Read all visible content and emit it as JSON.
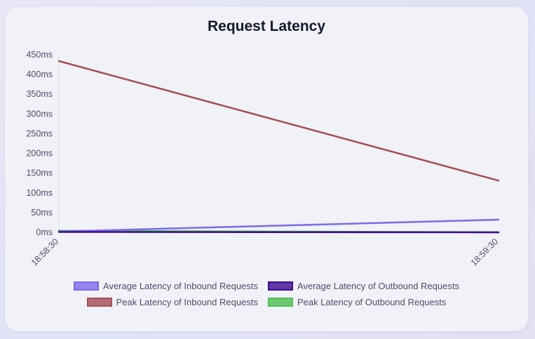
{
  "chart_data": {
    "type": "line",
    "title": "Request Latency",
    "x": [
      "18:58:30",
      "18:59:30"
    ],
    "y_ticks": [
      "0ms",
      "50ms",
      "100ms",
      "150ms",
      "200ms",
      "250ms",
      "300ms",
      "350ms",
      "400ms",
      "450ms"
    ],
    "ylim": [
      0,
      450
    ],
    "y_unit": "ms",
    "grid": false,
    "legend_placement": "bottom",
    "series": [
      {
        "name": "Average Latency of Inbound Requests",
        "values": [
          2,
          32
        ],
        "color": "#7b6ae8"
      },
      {
        "name": "Average Latency of Outbound Requests",
        "values": [
          1,
          0
        ],
        "color": "#3d0a91"
      },
      {
        "name": "Peak Latency of Inbound Requests",
        "values": [
          434,
          131
        ],
        "color": "#a34f55"
      },
      {
        "name": "Peak Latency of Outbound Requests",
        "values": [
          4,
          0
        ],
        "color": "#4fbf52"
      }
    ]
  }
}
